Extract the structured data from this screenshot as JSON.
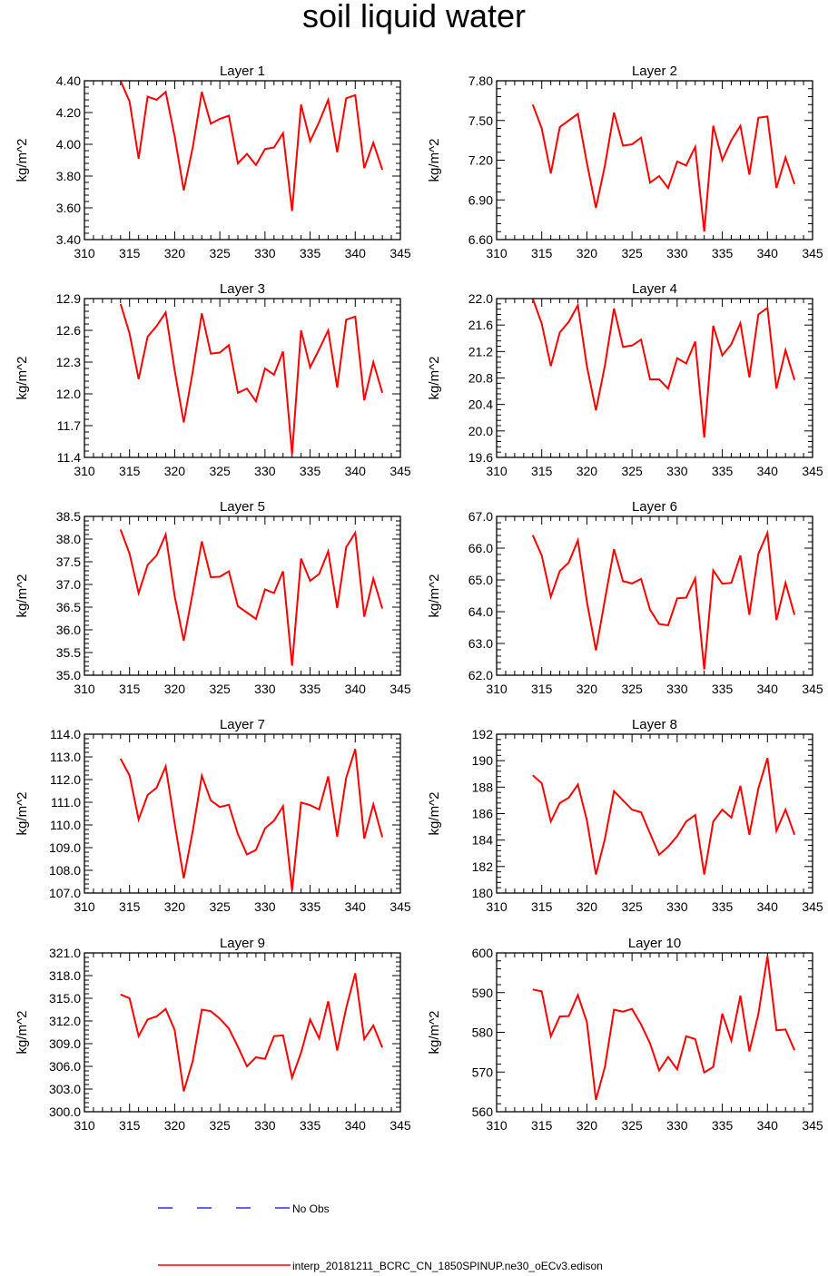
{
  "title": "soil liquid water",
  "legend": {
    "obs_label": "No Obs",
    "model_label": "interp_20181211_BCRC_CN_1850SPINUP.ne30_oECv3.edison",
    "obs_color": "#0000ff",
    "model_color": "#ff0000"
  },
  "chart_data": [
    {
      "type": "line",
      "title": "Layer 1",
      "ylabel": "kg/m^2",
      "xlim": [
        310,
        345
      ],
      "ylim": [
        3.4,
        4.4
      ],
      "xticks": [
        310,
        315,
        320,
        325,
        330,
        335,
        340,
        345
      ],
      "yticks": [
        "3.40",
        "3.60",
        "3.80",
        "4.00",
        "4.20",
        "4.40"
      ],
      "x": [
        314,
        315,
        316,
        317,
        318,
        319,
        320,
        321,
        322,
        323,
        324,
        325,
        326,
        327,
        328,
        329,
        330,
        331,
        332,
        333,
        334,
        335,
        336,
        337,
        338,
        339,
        340,
        341,
        342,
        343
      ],
      "series": [
        {
          "values": [
            4.4,
            4.27,
            3.91,
            4.3,
            4.28,
            4.33,
            4.05,
            3.71,
            3.98,
            4.33,
            4.13,
            4.16,
            4.18,
            3.88,
            3.94,
            3.87,
            3.97,
            3.98,
            4.07,
            3.58,
            4.25,
            4.02,
            4.14,
            4.28,
            3.95,
            4.29,
            4.31,
            3.85,
            4.01,
            3.84
          ]
        }
      ]
    },
    {
      "type": "line",
      "title": "Layer 2",
      "ylabel": "kg/m^2",
      "xlim": [
        310,
        345
      ],
      "ylim": [
        6.6,
        7.8
      ],
      "xticks": [
        310,
        315,
        320,
        325,
        330,
        335,
        340,
        345
      ],
      "yticks": [
        "6.60",
        "6.90",
        "7.20",
        "7.50",
        "7.80"
      ],
      "x": [
        314,
        315,
        316,
        317,
        318,
        319,
        320,
        321,
        322,
        323,
        324,
        325,
        326,
        327,
        328,
        329,
        330,
        331,
        332,
        333,
        334,
        335,
        336,
        337,
        338,
        339,
        340,
        341,
        342,
        343
      ],
      "series": [
        {
          "values": [
            7.62,
            7.44,
            7.1,
            7.45,
            7.5,
            7.55,
            7.18,
            6.84,
            7.16,
            7.56,
            7.31,
            7.32,
            7.37,
            7.03,
            7.08,
            6.99,
            7.19,
            7.16,
            7.3,
            6.66,
            7.46,
            7.2,
            7.35,
            7.46,
            7.09,
            7.52,
            7.53,
            6.99,
            7.22,
            7.02
          ]
        }
      ]
    },
    {
      "type": "line",
      "title": "Layer 3",
      "ylabel": "kg/m^2",
      "xlim": [
        310,
        345
      ],
      "ylim": [
        11.4,
        12.9
      ],
      "xticks": [
        310,
        315,
        320,
        325,
        330,
        335,
        340,
        345
      ],
      "yticks": [
        "11.4",
        "11.7",
        "12.0",
        "12.3",
        "12.6",
        "12.9"
      ],
      "x": [
        314,
        315,
        316,
        317,
        318,
        319,
        320,
        321,
        322,
        323,
        324,
        325,
        326,
        327,
        328,
        329,
        330,
        331,
        332,
        333,
        334,
        335,
        336,
        337,
        338,
        339,
        340,
        341,
        342,
        343
      ],
      "series": [
        {
          "values": [
            12.85,
            12.57,
            12.14,
            12.54,
            12.64,
            12.77,
            12.22,
            11.73,
            12.21,
            12.76,
            12.38,
            12.39,
            12.46,
            12.01,
            12.05,
            11.93,
            12.24,
            12.18,
            12.4,
            11.43,
            12.6,
            12.25,
            12.42,
            12.6,
            12.06,
            12.7,
            12.73,
            11.94,
            12.3,
            12.01
          ]
        }
      ]
    },
    {
      "type": "line",
      "title": "Layer 4",
      "ylabel": "kg/m^2",
      "xlim": [
        310,
        345
      ],
      "ylim": [
        19.6,
        22.0
      ],
      "xticks": [
        310,
        315,
        320,
        325,
        330,
        335,
        340,
        345
      ],
      "yticks": [
        "19.6",
        "20.0",
        "20.4",
        "20.8",
        "21.2",
        "21.6",
        "22.0"
      ],
      "x": [
        314,
        315,
        316,
        317,
        318,
        319,
        320,
        321,
        322,
        323,
        324,
        325,
        326,
        327,
        328,
        329,
        330,
        331,
        332,
        333,
        334,
        335,
        336,
        337,
        338,
        339,
        340,
        341,
        342,
        343
      ],
      "series": [
        {
          "values": [
            22.0,
            21.62,
            20.98,
            21.49,
            21.65,
            21.9,
            20.98,
            20.31,
            20.99,
            21.85,
            21.27,
            21.29,
            21.38,
            20.78,
            20.78,
            20.64,
            21.1,
            21.02,
            21.35,
            19.9,
            21.59,
            21.14,
            21.31,
            21.63,
            20.81,
            21.76,
            21.86,
            20.64,
            21.22,
            20.77
          ]
        }
      ]
    },
    {
      "type": "line",
      "title": "Layer 5",
      "ylabel": "kg/m^2",
      "xlim": [
        310,
        345
      ],
      "ylim": [
        35.0,
        38.5
      ],
      "xticks": [
        310,
        315,
        320,
        325,
        330,
        335,
        340,
        345
      ],
      "yticks": [
        "35.0",
        "35.5",
        "36.0",
        "36.5",
        "37.0",
        "37.5",
        "38.0",
        "38.5"
      ],
      "x": [
        314,
        315,
        316,
        317,
        318,
        319,
        320,
        321,
        322,
        323,
        324,
        325,
        326,
        327,
        328,
        329,
        330,
        331,
        332,
        333,
        334,
        335,
        336,
        337,
        338,
        339,
        340,
        341,
        342,
        343
      ],
      "series": [
        {
          "values": [
            38.21,
            37.68,
            36.81,
            37.43,
            37.64,
            38.1,
            36.74,
            35.76,
            36.82,
            37.95,
            37.16,
            37.17,
            37.29,
            36.52,
            36.38,
            36.24,
            36.89,
            36.81,
            37.29,
            35.21,
            37.57,
            37.08,
            37.23,
            37.73,
            36.48,
            37.82,
            38.14,
            36.29,
            37.13,
            36.47
          ]
        }
      ]
    },
    {
      "type": "line",
      "title": "Layer 6",
      "ylabel": "kg/m^2",
      "xlim": [
        310,
        345
      ],
      "ylim": [
        62.0,
        67.0
      ],
      "xticks": [
        310,
        315,
        320,
        325,
        330,
        335,
        340,
        345
      ],
      "yticks": [
        "62.0",
        "63.0",
        "64.0",
        "65.0",
        "66.0",
        "67.0"
      ],
      "x": [
        314,
        315,
        316,
        317,
        318,
        319,
        320,
        321,
        322,
        323,
        324,
        325,
        326,
        327,
        328,
        329,
        330,
        331,
        332,
        333,
        334,
        335,
        336,
        337,
        338,
        339,
        340,
        341,
        342,
        343
      ],
      "series": [
        {
          "values": [
            66.41,
            65.77,
            64.47,
            65.28,
            65.55,
            66.25,
            64.32,
            62.78,
            64.38,
            65.97,
            64.96,
            64.89,
            65.03,
            64.06,
            63.61,
            63.57,
            64.42,
            64.44,
            65.05,
            62.18,
            65.3,
            64.88,
            64.91,
            65.77,
            63.9,
            65.82,
            66.48,
            63.74,
            64.91,
            63.9
          ]
        }
      ]
    },
    {
      "type": "line",
      "title": "Layer 7",
      "ylabel": "kg/m^2",
      "xlim": [
        310,
        345
      ],
      "ylim": [
        107.0,
        114.0
      ],
      "xticks": [
        310,
        315,
        320,
        325,
        330,
        335,
        340,
        345
      ],
      "yticks": [
        "107.0",
        "108.0",
        "109.0",
        "110.0",
        "111.0",
        "112.0",
        "113.0",
        "114.0"
      ],
      "x": [
        314,
        315,
        316,
        317,
        318,
        319,
        320,
        321,
        322,
        323,
        324,
        325,
        326,
        327,
        328,
        329,
        330,
        331,
        332,
        333,
        334,
        335,
        336,
        337,
        338,
        339,
        340,
        341,
        342,
        343
      ],
      "series": [
        {
          "values": [
            112.92,
            112.18,
            110.24,
            111.32,
            111.64,
            112.58,
            110.06,
            107.65,
            109.73,
            112.17,
            111.08,
            110.79,
            110.89,
            109.6,
            108.7,
            108.9,
            109.85,
            110.19,
            110.82,
            107.12,
            110.99,
            110.87,
            110.68,
            112.14,
            109.48,
            112.08,
            113.35,
            109.4,
            110.91,
            109.46
          ]
        }
      ]
    },
    {
      "type": "line",
      "title": "Layer 8",
      "ylabel": "kg/m^2",
      "xlim": [
        310,
        345
      ],
      "ylim": [
        180,
        192
      ],
      "xticks": [
        310,
        315,
        320,
        325,
        330,
        335,
        340,
        345
      ],
      "yticks": [
        "180",
        "182",
        "184",
        "186",
        "188",
        "190",
        "192"
      ],
      "x": [
        314,
        315,
        316,
        317,
        318,
        319,
        320,
        321,
        322,
        323,
        324,
        325,
        326,
        327,
        328,
        329,
        330,
        331,
        332,
        333,
        334,
        335,
        336,
        337,
        338,
        339,
        340,
        341,
        342,
        343
      ],
      "series": [
        {
          "values": [
            188.9,
            188.3,
            185.4,
            186.8,
            187.2,
            188.2,
            185.5,
            181.4,
            184.1,
            187.7,
            187.0,
            186.3,
            186.1,
            184.5,
            182.9,
            183.5,
            184.3,
            185.4,
            185.9,
            181.4,
            185.4,
            186.3,
            185.7,
            188.1,
            184.4,
            187.9,
            190.2,
            184.7,
            186.3,
            184.4
          ]
        }
      ]
    },
    {
      "type": "line",
      "title": "Layer 9",
      "ylabel": "kg/m^2",
      "xlim": [
        310,
        345
      ],
      "ylim": [
        300.0,
        321.0
      ],
      "xticks": [
        310,
        315,
        320,
        325,
        330,
        335,
        340,
        345
      ],
      "yticks": [
        "300.0",
        "303.0",
        "306.0",
        "309.0",
        "312.0",
        "315.0",
        "318.0",
        "321.0"
      ],
      "x": [
        314,
        315,
        316,
        317,
        318,
        319,
        320,
        321,
        322,
        323,
        324,
        325,
        326,
        327,
        328,
        329,
        330,
        331,
        332,
        333,
        334,
        335,
        336,
        337,
        338,
        339,
        340,
        341,
        342,
        343
      ],
      "series": [
        {
          "values": [
            315.5,
            315.0,
            310.0,
            312.2,
            312.6,
            313.6,
            310.8,
            302.7,
            306.7,
            313.5,
            313.3,
            312.3,
            311.0,
            308.6,
            306.0,
            307.2,
            307.0,
            310.0,
            310.1,
            304.5,
            307.8,
            312.2,
            309.7,
            314.6,
            308.1,
            313.7,
            318.3,
            309.6,
            311.4,
            308.5
          ]
        }
      ]
    },
    {
      "type": "line",
      "title": "Layer 10",
      "ylabel": "kg/m^2",
      "xlim": [
        310,
        345
      ],
      "ylim": [
        560,
        600
      ],
      "xticks": [
        310,
        315,
        320,
        325,
        330,
        335,
        340,
        345
      ],
      "yticks": [
        "560",
        "570",
        "580",
        "590",
        "600"
      ],
      "x": [
        314,
        315,
        316,
        317,
        318,
        319,
        320,
        321,
        322,
        323,
        324,
        325,
        326,
        327,
        328,
        329,
        330,
        331,
        332,
        333,
        334,
        335,
        336,
        337,
        338,
        339,
        340,
        341,
        342,
        343
      ],
      "series": [
        {
          "values": [
            590.8,
            590.3,
            579.0,
            584.0,
            584.1,
            589.4,
            582.6,
            563.0,
            571.3,
            585.7,
            585.2,
            585.9,
            582.0,
            577.2,
            570.4,
            573.8,
            570.7,
            579.0,
            578.3,
            569.9,
            571.3,
            584.7,
            577.9,
            589.2,
            575.2,
            584.6,
            599.2,
            580.5,
            580.7,
            575.5
          ]
        }
      ]
    }
  ]
}
